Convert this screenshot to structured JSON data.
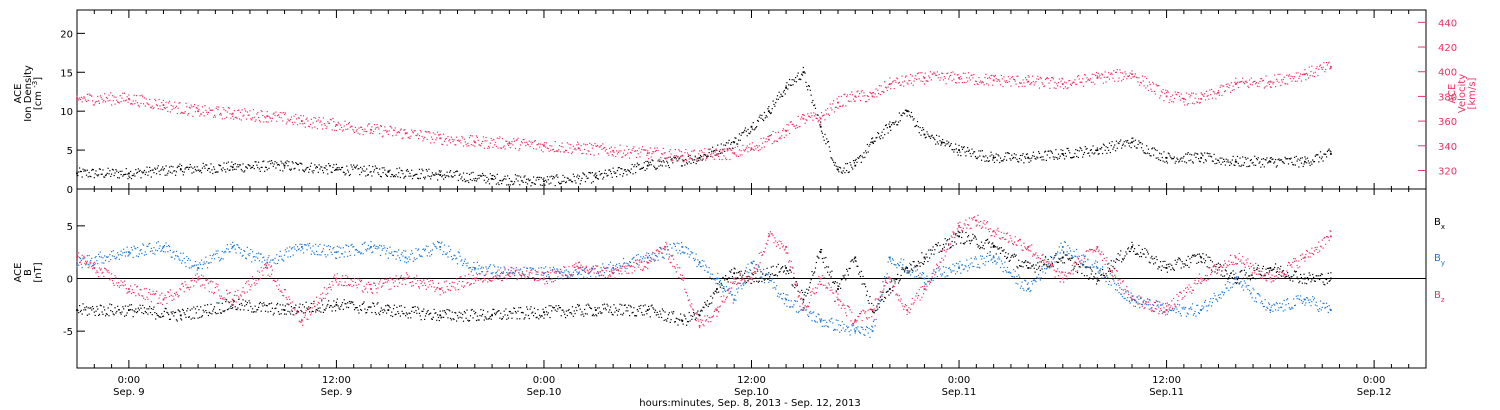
{
  "figure": {
    "title": "",
    "bottom_caption": "hours:minutes, Sep. 8, 2013 - Sep. 12, 2013"
  },
  "colors": {
    "black": "#000000",
    "pink": "#ee3366",
    "blue": "#1f77d4",
    "axis": "#000000"
  },
  "time_axis": {
    "range_hours": [
      -3,
      75
    ],
    "ticks": [
      {
        "hours": 0,
        "time": "0:00",
        "date": "Sep. 9"
      },
      {
        "hours": 12,
        "time": "12:00",
        "date": "Sep. 9"
      },
      {
        "hours": 24,
        "time": "0:00",
        "date": "Sep.10"
      },
      {
        "hours": 36,
        "time": "12:00",
        "date": "Sep.10"
      },
      {
        "hours": 48,
        "time": "0:00",
        "date": "Sep.11"
      },
      {
        "hours": 60,
        "time": "12:00",
        "date": "Sep.11"
      },
      {
        "hours": 72,
        "time": "0:00",
        "date": "Sep.12"
      }
    ]
  },
  "chart_data": [
    {
      "type": "scatter",
      "panel": "top",
      "ylabel_left": [
        "ACE",
        "Ion Density",
        "[cm^-3]"
      ],
      "ylabel_right": [
        "ACE",
        "Velocity",
        "[km/s]"
      ],
      "ylim_left": [
        0,
        23
      ],
      "ylim_right": [
        305,
        450
      ],
      "left_ticks": [
        0,
        5,
        10,
        15,
        20
      ],
      "right_ticks": [
        320,
        340,
        360,
        380,
        400,
        420,
        440
      ],
      "series": [
        {
          "axis": "left",
          "color": "black",
          "x": [
            -3,
            0,
            3,
            6,
            9,
            12,
            15,
            18,
            21,
            24,
            27,
            30,
            33,
            35,
            36,
            37,
            38,
            39,
            40,
            41,
            42,
            43,
            44,
            45,
            46,
            47,
            48,
            50,
            52,
            54,
            56,
            58,
            60,
            62,
            64,
            66,
            68,
            69.5
          ],
          "y": [
            2.0,
            2.0,
            2.5,
            2.8,
            3.0,
            2.5,
            2.2,
            1.8,
            1.3,
            1.0,
            1.5,
            3.0,
            4.0,
            6.0,
            8.0,
            10.0,
            13.0,
            15.0,
            8.0,
            2.5,
            3.0,
            6.0,
            8.0,
            10.0,
            7.0,
            6.0,
            5.0,
            4.0,
            4.0,
            4.5,
            5.0,
            6.0,
            4.0,
            4.0,
            3.5,
            3.5,
            3.5,
            4.5
          ]
        },
        {
          "axis": "right",
          "color": "pink",
          "x": [
            -3,
            0,
            2,
            4,
            6,
            8,
            10,
            12,
            14,
            16,
            18,
            20,
            22,
            24,
            26,
            28,
            30,
            32,
            34,
            35,
            36,
            37,
            38,
            39,
            40,
            41,
            42,
            43,
            44,
            46,
            48,
            50,
            52,
            54,
            56,
            58,
            60,
            61,
            62,
            63,
            64,
            66,
            68,
            69.5
          ],
          "y": [
            378,
            378,
            373,
            368,
            366,
            364,
            360,
            357,
            353,
            350,
            346,
            343,
            342,
            340,
            338,
            336,
            334,
            332,
            333,
            334,
            338,
            345,
            352,
            362,
            362,
            375,
            380,
            380,
            390,
            395,
            395,
            393,
            392,
            390,
            395,
            398,
            380,
            378,
            378,
            383,
            390,
            392,
            398,
            404
          ]
        }
      ]
    },
    {
      "type": "scatter",
      "panel": "bottom",
      "ylabel_left": [
        "ACE",
        "B",
        "[nT]"
      ],
      "ylim": [
        -8.5,
        8.5
      ],
      "ticks": [
        -5,
        0,
        5
      ],
      "zero_line": true,
      "legend": "right",
      "series": [
        {
          "name": "B",
          "sub": "x",
          "color": "black",
          "x": [
            -3,
            0,
            3,
            6,
            9,
            12,
            15,
            18,
            21,
            24,
            27,
            30,
            32,
            33,
            34,
            35,
            36,
            38,
            39,
            40,
            41,
            42,
            43,
            44,
            45,
            46,
            48,
            50,
            52,
            54,
            56,
            58,
            60,
            62,
            64,
            66,
            68,
            69.5
          ],
          "y": [
            -3.0,
            -3.0,
            -3.5,
            -2.5,
            -3.0,
            -2.5,
            -3.0,
            -3.5,
            -3.5,
            -3.2,
            -3.0,
            -3.0,
            -4.0,
            -3.5,
            -1.0,
            0.5,
            0.0,
            1.0,
            -2.0,
            2.5,
            -1.0,
            2.0,
            -3.0,
            -1.0,
            1.0,
            2.0,
            4.0,
            3.0,
            1.0,
            2.0,
            0.0,
            3.0,
            1.0,
            2.0,
            0.0,
            1.0,
            0.0,
            0.0
          ]
        },
        {
          "name": "B",
          "sub": "y",
          "color": "blue",
          "x": [
            -3,
            0,
            2,
            4,
            6,
            8,
            10,
            12,
            14,
            16,
            18,
            20,
            22,
            24,
            26,
            28,
            30,
            32,
            33,
            34,
            35,
            36,
            38,
            40,
            42,
            43,
            44,
            46,
            48,
            50,
            52,
            54,
            56,
            58,
            60,
            62,
            64,
            66,
            68,
            69.5
          ],
          "y": [
            1.5,
            2.5,
            3.0,
            1.0,
            3.0,
            1.5,
            3.0,
            2.5,
            3.0,
            2.0,
            3.0,
            1.0,
            0.5,
            0.5,
            0.5,
            1.0,
            2.0,
            3.0,
            1.5,
            0.0,
            -2.0,
            1.5,
            -2.0,
            -4.0,
            -5.0,
            -5.0,
            2.0,
            0.0,
            1.0,
            2.0,
            -1.0,
            3.0,
            1.0,
            -2.0,
            -3.0,
            -3.0,
            0.0,
            -3.0,
            -2.0,
            -3.0
          ]
        },
        {
          "name": "B",
          "sub": "z",
          "color": "pink",
          "x": [
            -3,
            -2,
            0,
            2,
            4,
            6,
            8,
            10,
            12,
            14,
            16,
            18,
            20,
            22,
            24,
            26,
            28,
            30,
            31,
            32,
            33,
            34,
            35,
            36,
            37,
            38,
            39,
            40,
            41,
            42,
            43,
            44,
            45,
            46,
            48,
            49,
            50,
            52,
            54,
            56,
            58,
            60,
            62,
            64,
            66,
            68,
            69.5
          ],
          "y": [
            2.0,
            1.0,
            -1.0,
            -2.0,
            0.0,
            -2.0,
            1.0,
            -4.0,
            0.0,
            -1.0,
            0.0,
            -1.0,
            0.0,
            0.5,
            0.0,
            1.0,
            0.5,
            1.5,
            3.0,
            0.0,
            -4.5,
            -3.0,
            0.0,
            0.0,
            4.0,
            3.0,
            -3.0,
            0.0,
            -2.0,
            -4.0,
            -3.0,
            0.0,
            -3.0,
            -1.0,
            5.0,
            5.5,
            4.5,
            3.0,
            0.0,
            3.0,
            -2.0,
            -3.0,
            0.0,
            2.0,
            0.0,
            2.0,
            4.0
          ]
        }
      ]
    }
  ]
}
